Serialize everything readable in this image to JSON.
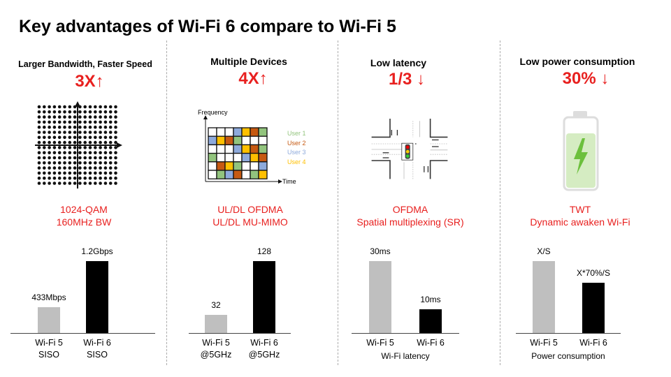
{
  "title": "Key advantages of Wi-Fi 6 compare to Wi-Fi 5",
  "sections": [
    {
      "heading": "Larger Bandwidth, Faster Speed",
      "gain": "3X↑",
      "desc1": "1024-QAM",
      "desc2": "160MHz BW",
      "icon": "qam-constellation-icon"
    },
    {
      "heading": "Multiple Devices",
      "gain": "4X↑",
      "desc1": "UL/DL OFDMA",
      "desc2": "UL/DL MU-MIMO",
      "icon": "ofdma-grid-icon",
      "diagram": {
        "y_label": "Frequency",
        "x_label": "Time",
        "legend": [
          "User 1",
          "User 2",
          "User 3",
          "User 4"
        ]
      }
    },
    {
      "heading": "Low latency",
      "gain": "1/3 ↓",
      "desc1": "OFDMA",
      "desc2": "Spatial multiplexing (SR)",
      "icon": "traffic-intersection-icon"
    },
    {
      "heading": "Low power consumption",
      "gain": "30% ↓",
      "desc1": "TWT",
      "desc2": "Dynamic awaken Wi-Fi",
      "icon": "battery-charging-icon"
    }
  ],
  "colors": {
    "accent": "#e8201f",
    "wifi5": "#bfbfbf",
    "wifi6": "#000000",
    "user1": "#92c47d",
    "user2": "#c65911",
    "user3": "#8eaadb",
    "user4": "#ffc000"
  },
  "chart_data": [
    {
      "type": "bar",
      "categories": [
        "Wi-Fi 5",
        "Wi-Fi 6"
      ],
      "subcategories": [
        "SISO",
        "SISO"
      ],
      "values": [
        433,
        1200
      ],
      "unit": "Mbps",
      "data_labels": [
        "433Mbps",
        "1.2Gbps"
      ],
      "caption": ""
    },
    {
      "type": "bar",
      "categories": [
        "Wi-Fi 5",
        "Wi-Fi 6"
      ],
      "subcategories": [
        "@5GHz",
        "@5GHz"
      ],
      "values": [
        32,
        128
      ],
      "data_labels": [
        "32",
        "128"
      ],
      "caption": ""
    },
    {
      "type": "bar",
      "categories": [
        "Wi-Fi 5",
        "Wi-Fi 6"
      ],
      "subcategories": [
        "",
        ""
      ],
      "values": [
        30,
        10
      ],
      "unit": "ms",
      "data_labels": [
        "30ms",
        "10ms"
      ],
      "caption": "Wi-Fi latency"
    },
    {
      "type": "bar",
      "categories": [
        "Wi-Fi 5",
        "Wi-Fi 6"
      ],
      "subcategories": [
        "",
        ""
      ],
      "values": [
        1,
        0.7
      ],
      "data_labels": [
        "X/S",
        "X*70%/S"
      ],
      "caption": "Power consumption"
    }
  ]
}
